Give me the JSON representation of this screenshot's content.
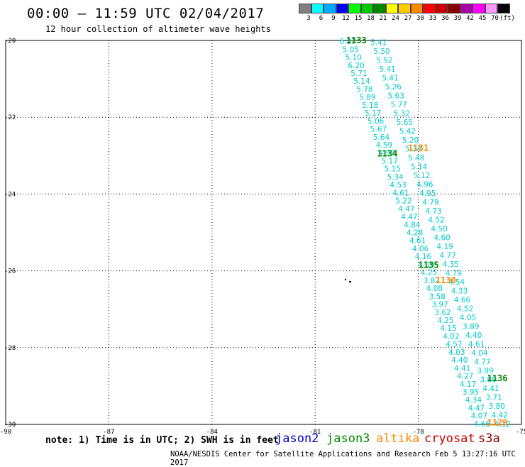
{
  "header": {
    "title": "00:00 – 11:59 UTC 02/04/2017",
    "subtitle": "12 hour collection of altimeter wave heights"
  },
  "color_scale": {
    "bins": [
      {
        "label": "3",
        "color": "#808080"
      },
      {
        "label": "6",
        "color": "#00ffff"
      },
      {
        "label": "9",
        "color": "#00aaff"
      },
      {
        "label": "12",
        "color": "#0000ff"
      },
      {
        "label": "15",
        "color": "#00ff00"
      },
      {
        "label": "18",
        "color": "#00cc00"
      },
      {
        "label": "21",
        "color": "#008800"
      },
      {
        "label": "24",
        "color": "#ffff00"
      },
      {
        "label": "27",
        "color": "#ffcc00"
      },
      {
        "label": "30",
        "color": "#ff8800"
      },
      {
        "label": "33",
        "color": "#ff0000"
      },
      {
        "label": "36",
        "color": "#cc0000"
      },
      {
        "label": "39",
        "color": "#880000"
      },
      {
        "label": "42",
        "color": "#aa00aa"
      },
      {
        "label": "45",
        "color": "#ff00ff"
      },
      {
        "label": "70",
        "color": "#ff99ff"
      },
      {
        "label": "(ft)",
        "color": "#000000"
      }
    ]
  },
  "map": {
    "lon_ticks": [
      "-90",
      "-87",
      "-84",
      "-81",
      "-78",
      "-75"
    ],
    "lat_ticks": [
      "-20",
      "-22",
      "-24",
      "-26",
      "-28",
      "-30"
    ],
    "pass_labels": [
      {
        "text": "1133",
        "color": "#008800",
        "lon": -79.8,
        "lat": -20.0
      },
      {
        "text": "1131",
        "color": "#ff8800",
        "lon": -78.0,
        "lat": -22.8
      },
      {
        "text": "1134",
        "color": "#008800",
        "lon": -78.9,
        "lat": -22.95
      },
      {
        "text": "1135",
        "color": "#008800",
        "lon": -77.7,
        "lat": -25.85
      },
      {
        "text": "1130",
        "color": "#ff8800",
        "lon": -77.2,
        "lat": -26.25
      },
      {
        "text": "1136",
        "color": "#008800",
        "lon": -75.7,
        "lat": -28.8
      },
      {
        "text": "1129",
        "color": "#ff8800",
        "lon": -75.7,
        "lat": -29.95
      }
    ],
    "track_a": [
      "6.37",
      "5.05",
      "5.10",
      "6.20",
      "5.71",
      "5.14",
      "5.78",
      "5.89",
      "5.18",
      "5.17",
      "5.06",
      "5.67",
      "5.64",
      "4.59",
      "4.97",
      "5.17",
      "5.15",
      "5.34",
      "4.53",
      "4.61",
      "5.22",
      "4.47",
      "4.47",
      "4.84",
      "4.28",
      "4.61",
      "4.06",
      "4.16",
      "4.09",
      "4.25",
      "3.82",
      "4.08",
      "3.58",
      "3.97",
      "3.62",
      "4.25",
      "4.15",
      "4.02",
      "4.57",
      "4.03",
      "4.40",
      "4.41",
      "4.27",
      "4.17",
      "3.95",
      "4.34",
      "4.47",
      "4.07",
      "4.66"
    ],
    "track_b": [
      "5.41",
      "5.50",
      "5.52",
      "5.41",
      "5.41",
      "5.26",
      "5.63",
      "5.77",
      "5.32",
      "5.65",
      "5.42",
      "5.20",
      "5.34",
      "5.48",
      "5.14",
      "5.12",
      "4.96",
      "4.95",
      "4.79",
      "4.73",
      "4.52",
      "4.50",
      "4.60",
      "4.19",
      "4.77",
      "4.35",
      "4.79",
      "4.54",
      "4.33",
      "4.66",
      "4.52",
      "4.05",
      "3.89",
      "4.40",
      "4.61",
      "4.04",
      "4.77",
      "3.99",
      "3.80",
      "4.41",
      "3.71",
      "3.80",
      "4.42",
      "4.12"
    ]
  },
  "chart_data": {
    "type": "scatter",
    "title": "00:00 – 11:59 UTC 02/04/2017",
    "subtitle": "12 hour collection of altimeter wave heights",
    "xlim": [
      -90,
      -75
    ],
    "ylim": [
      -30,
      -20
    ],
    "unit": "ft",
    "series": [
      {
        "name": "jason3",
        "pass": "1133",
        "lat_start": -20.0,
        "lon_start": -80.0,
        "lat_end": -30.0,
        "lon_end": -76.3
      },
      {
        "name": "jason3",
        "pass": "1134",
        "lat_start": -20.0,
        "lon_start": -79.4,
        "lat_end": -30.0,
        "lon_end": -75.9
      }
    ]
  },
  "legend": [
    {
      "name": "jason2",
      "color": "#0000cc"
    },
    {
      "name": "jason3",
      "color": "#008800"
    },
    {
      "name": "altika",
      "color": "#ff8800"
    },
    {
      "name": "cryosat",
      "color": "#cc0000"
    },
    {
      "name": "s3a",
      "color": "#880000"
    }
  ],
  "note": "note: 1) Time is in UTC; 2) SWH is in feet",
  "footer": "NOAA/NESDIS Center for Satellite Applications and Research    Feb  5 13:27:16 UTC 2017"
}
